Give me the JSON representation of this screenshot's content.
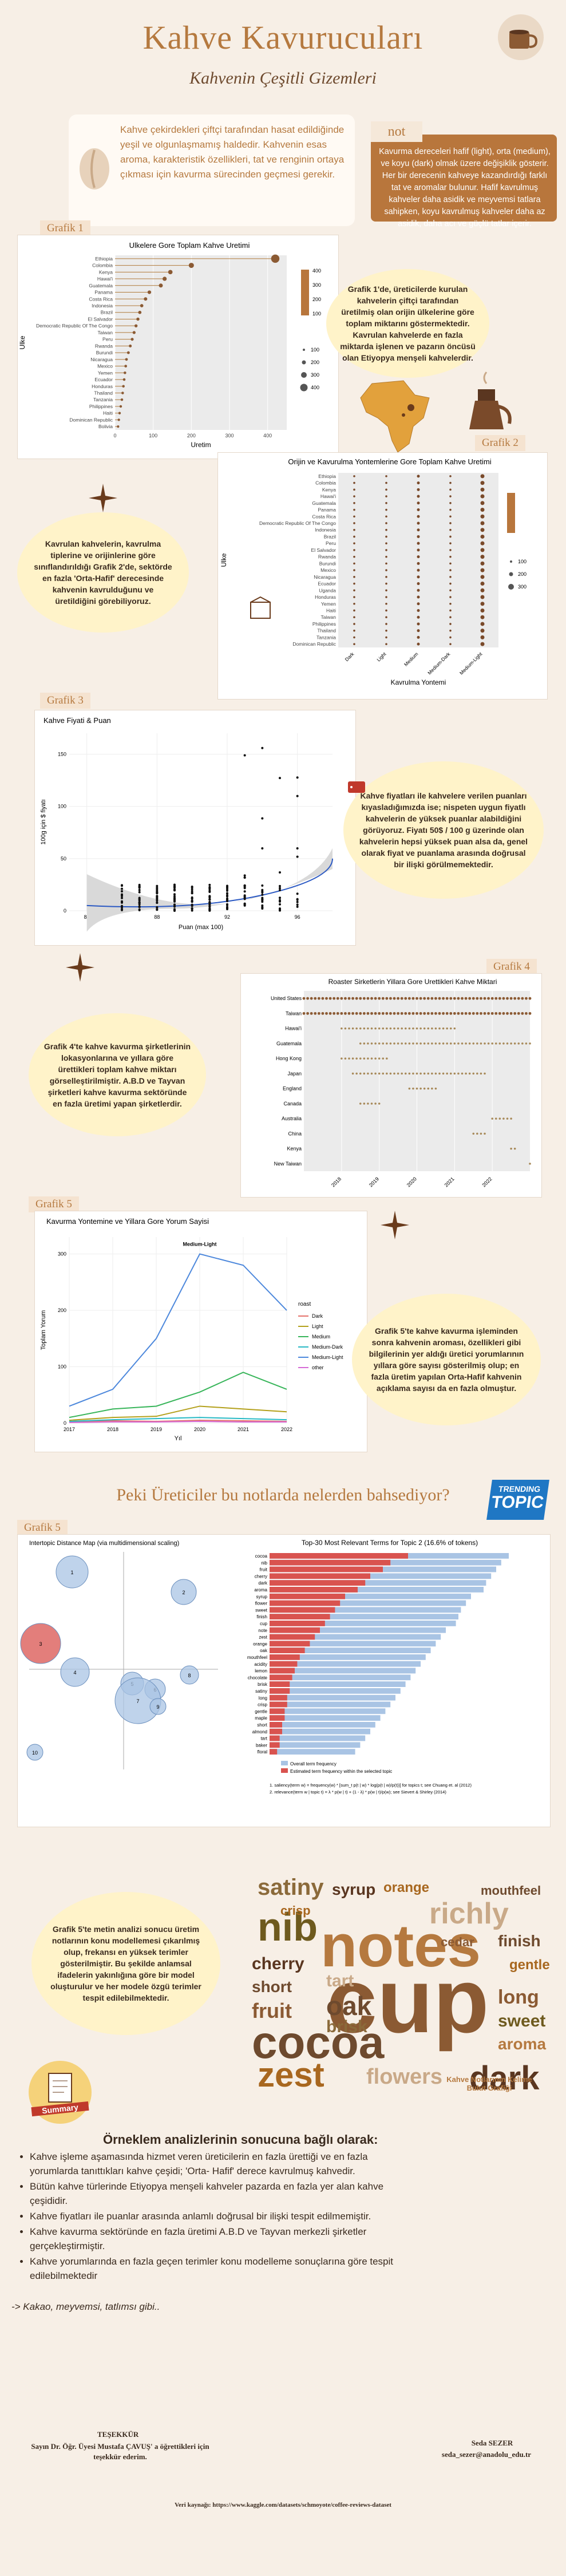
{
  "header": {
    "title": "Kahve Kavurucuları",
    "subtitle": "Kahvenin Çeşitli Gizemleri"
  },
  "intro": {
    "text": "Kahve çekirdekleri çiftçi tarafından hasat edildiğinde yeşil ve olgunlaşmamış haldedir. Kahvenin esas aroma, karakteristik özellikleri, tat ve renginin ortaya çıkması için kavurma sürecinden geçmesi gerekir."
  },
  "note": {
    "title": "not",
    "text": "Kavurma dereceleri hafif (light), orta (medium), ve koyu (dark) olmak üzere değişiklik gösterir. Her bir derecenin kahveye kazandırdığı farklı tat ve aromalar bulunur. Hafif kavrulmuş kahveler daha asidik ve meyvemsi tatlara sahipken, koyu kavrulmuş kahveler daha az asidik, daha acı ve güçlü tatlar içerir."
  },
  "tags": {
    "g1": "Grafik 1",
    "g2": "Grafik 2",
    "g3": "Grafik 3",
    "g4": "Grafik 4",
    "g5a": "Grafik 5",
    "g5b": "Grafik 5"
  },
  "bubbles": {
    "b1": "Grafik 1'de, üreticilerde kurulan kahvelerin çiftçi tarafından üretilmiş olan orijin ülkelerine göre toplam miktarını göstermektedir. Kavrulan kahvelerde en fazla miktarda işlenen ve pazarın öncüsü olan Etiyopya menşeli kahvelerdir.",
    "b2": "Kavrulan kahvelerin, kavrulma tiplerine ve orijinlerine göre sınıflandırıldığı Grafik 2'de, sektörde en fazla 'Orta-Hafif' derecesinde kahvenin kavrulduğunu ve üretildiğini görebiliyoruz.",
    "b3": "Kahve fiyatları ile kahvelere verilen puanları kıyasladığımızda ise; nispeten uygun fiyatlı kahvelerin de yüksek puanlar alabildiğini görüyoruz. Fiyatı 50$ / 100 g üzerinde olan kahvelerin hepsi yüksek puan alsa da, genel olarak fiyat ve puanlama arasında doğrusal bir ilişki görülmemektedir.",
    "b4": "Grafik 4'te kahve kavurma şirketlerinin lokasyonlarına ve yıllara göre ürettikleri toplam kahve miktarı görselleştirilmiştir. A.B.D ve Tayvan şirketleri kahve kavurma sektöründe en fazla üretimi yapan şirketlerdir.",
    "b5": "Grafik 5'te kahve kavurma işleminden sonra kahvenin aroması, özellikleri gibi bilgilerinin yer aldığı üretici yorumlarının yıllara göre sayısı gösterilmiş olup; en fazla üretim yapılan Orta-Hafif kahvenin açıklama sayısı da en fazla olmuştur.",
    "b6": "Grafik 5'te metin analizi sonucu üretim notlarının konu modellemesi çıkarılmış olup, frekansı en yüksek terimler gösterilmiştir. Bu şekilde anlamsal ifadelerin yakınlığına göre bir model oluşturulur ve her modele özgü terimler tespit edilebilmektedir."
  },
  "section_question": "Peki Üreticiler bu notlarda nelerden bahsediyor?",
  "trending": {
    "line1": "TRENDING",
    "line2": "TOPIC"
  },
  "wordcloud": {
    "caption": "Kahve Notlarının Kelime Bulut Grafiği"
  },
  "summary_label": "Summary",
  "results": {
    "title": "Örneklem analizlerinin sonucuna bağlı olarak:",
    "items": [
      "Kahve işleme aşamasında hizmet veren üreticilerin en fazla ürettiği ve en fazla yorumlarda tanıttıkları kahve çeşidi; 'Orta- Hafif' derece kavrulmuş kahvedir.",
      "Bütün kahve türlerinde Etiyopya menşeli kahveler pazarda en fazla yer alan kahve çeşididir.",
      "Kahve fiyatları ile puanlar arasında anlamlı doğrusal bir ilişki tespit edilmemiştir.",
      "Kahve kavurma sektöründe en fazla üretimi A.B.D ve Tayvan merkezli şirketler gerçekleştirmiştir.",
      "Kahve yorumlarında en fazla geçen terimler konu modelleme sonuçlarına göre tespit edilebilmektedir"
    ],
    "footer": "-> Kakao, meyvemsi, tatlımsı gibi.."
  },
  "thanks": {
    "title": "TEŞEKKÜR",
    "text": "Sayın Dr. Öğr. Üyesi Mustafa ÇAVUŞ' a öğrettikleri için teşekkür ederim."
  },
  "author": {
    "name": "Seda SEZER",
    "email": "seda_sezer@anadolu_edu.tr"
  },
  "source": "Veri kaynağı: https://www.kaggle.com/datasets/schmoyote/coffee-reviews-dataset",
  "chart_data": [
    {
      "type": "bar",
      "title": "Ulkelere Gore Toplam Kahve Uretimi",
      "xlabel": "Uretim",
      "ylabel": "Ulke",
      "xticks": [
        "0",
        "100",
        "200",
        "300",
        "400"
      ],
      "xlim": [
        0,
        450
      ],
      "categories": [
        "Ethiopia",
        "Colombia",
        "Kenya",
        "Hawai'i",
        "Guatemala",
        "Panama",
        "Costa Rica",
        "Indonesia",
        "Brazil",
        "El Salvador",
        "Democratic Republic Of The Congo",
        "Taiwan",
        "Peru",
        "Rwanda",
        "Burundi",
        "Nicaragua",
        "Mexico",
        "Yemen",
        "Ecuador",
        "Honduras",
        "Thailand",
        "Tanzania",
        "Philippines",
        "Haiti",
        "Dominican Republic",
        "Bolivia"
      ],
      "values": [
        420,
        200,
        145,
        130,
        120,
        90,
        80,
        70,
        65,
        60,
        55,
        50,
        45,
        40,
        35,
        30,
        28,
        26,
        24,
        22,
        20,
        18,
        15,
        12,
        10,
        8
      ],
      "legend": {
        "title": "",
        "entries": [
          "100",
          "200",
          "300",
          "400"
        ],
        "sizes": [
          "100",
          "200",
          "300",
          "400"
        ]
      }
    },
    {
      "type": "scatter",
      "title": "Orijin ve Kavurulma Yontemlerine Gore Toplam Kahve Uretimi",
      "xlabel": "Kavrulma Yontemi",
      "ylabel": "Ulke",
      "categories_x": [
        "Dark",
        "Light",
        "Medium",
        "Medium-Dark",
        "Medium-Light"
      ],
      "categories_y": [
        "Ethiopia",
        "Colombia",
        "Kenya",
        "Hawai'i",
        "Guatemala",
        "Panama",
        "Costa Rica",
        "Democratic Republic Of The Congo",
        "Indonesia",
        "Brazil",
        "Peru",
        "El Salvador",
        "Rwanda",
        "Burundi",
        "Mexico",
        "Nicaragua",
        "Ecuador",
        "Uganda",
        "Honduras",
        "Yemen",
        "Haiti",
        "Taiwan",
        "Philippines",
        "Thailand",
        "Tanzania",
        "Dominican Republic"
      ],
      "legend": {
        "entries": [
          "100",
          "200",
          "300"
        ]
      }
    },
    {
      "type": "scatter",
      "title": "Kahve Fiyati & Puan",
      "xlabel": "Puan (max 100)",
      "ylabel": "100g için $ fiyatı",
      "xticks": [
        "84",
        "88",
        "92",
        "96"
      ],
      "yticks": [
        "0",
        "50",
        "100",
        "150"
      ],
      "xlim": [
        83,
        98
      ],
      "ylim": [
        0,
        170
      ]
    },
    {
      "type": "scatter",
      "title": "Roaster Sirketlerin Yillara Gore Urettikleri Kahve Miktari",
      "xticks": [
        "2018",
        "2019",
        "2020",
        "2021",
        "2022"
      ],
      "categories": [
        "United States",
        "Taiwan",
        "Hawai'i",
        "Guatemala",
        "Hong Kong",
        "Japan",
        "England",
        "Canada",
        "Australia",
        "China",
        "Kenya",
        "New Taiwan"
      ]
    },
    {
      "type": "line",
      "title": "Kavurma Yontemine ve Yillara Gore Yorum Sayisi",
      "xlabel": "Yıl",
      "ylabel": "Toplam Yorum",
      "x": [
        2017,
        2018,
        2019,
        2020,
        2021,
        2022
      ],
      "yticks": [
        "0",
        "100",
        "200",
        "300"
      ],
      "ylim": [
        0,
        330
      ],
      "annotation": "Medium-Light",
      "legend_title": "roast",
      "series": [
        {
          "name": "Dark",
          "values": [
            2,
            4,
            3,
            5,
            4,
            3
          ],
          "color": "#e4716a"
        },
        {
          "name": "Light",
          "values": [
            5,
            10,
            12,
            30,
            25,
            20
          ],
          "color": "#b3a01b"
        },
        {
          "name": "Medium",
          "values": [
            10,
            25,
            30,
            55,
            90,
            60
          ],
          "color": "#38b55a"
        },
        {
          "name": "Medium-Dark",
          "values": [
            3,
            6,
            8,
            10,
            8,
            6
          ],
          "color": "#28b9c4"
        },
        {
          "name": "Medium-Light",
          "values": [
            30,
            60,
            150,
            300,
            280,
            200
          ],
          "color": "#4d88dc"
        },
        {
          "name": "other",
          "values": [
            1,
            2,
            2,
            3,
            2,
            2
          ],
          "color": "#d66ad6"
        }
      ]
    },
    {
      "type": "scatter",
      "title": "Intertopic Distance Map (via multidimensional scaling)",
      "labels": [
        "1",
        "2",
        "3",
        "4",
        "5",
        "6",
        "7",
        "8",
        "9",
        "10"
      ]
    },
    {
      "type": "bar",
      "title": "Top-30 Most Relevant Terms for Topic 2 (16.6% of tokens)",
      "categories": [
        "cocoa",
        "nib",
        "fruit",
        "cherry",
        "dark",
        "aroma",
        "syrup",
        "flower",
        "sweet",
        "finish",
        "cup",
        "note",
        "zest",
        "orange",
        "oak",
        "mouthfeel",
        "acidity",
        "lemon",
        "chocolate",
        "brisk",
        "satiny",
        "long",
        "crisp",
        "gentle",
        "maple",
        "short",
        "almond",
        "tart",
        "baker",
        "floral"
      ],
      "series": [
        {
          "name": "Overall term frequency",
          "values": [
            95,
            92,
            90,
            88,
            86,
            85,
            80,
            78,
            76,
            75,
            74,
            70,
            68,
            66,
            64,
            62,
            60,
            58,
            56,
            54,
            52,
            50,
            48,
            46,
            44,
            42,
            40,
            38,
            36,
            34
          ]
        },
        {
          "name": "Estimated term frequency within the selected topic",
          "values": [
            55,
            48,
            45,
            40,
            38,
            35,
            30,
            28,
            26,
            24,
            22,
            20,
            18,
            16,
            14,
            12,
            11,
            10,
            9,
            8,
            8,
            7,
            7,
            6,
            6,
            5,
            5,
            4,
            4,
            3
          ]
        }
      ],
      "footnote": [
        "1. saliency(term w) = frequency(w) * [sum_t p(t | w) * log(p(t | w)/p(t))] for topics t; see Chuang et. al (2012)",
        "2. relevance(term w | topic t) = λ * p(w | t) + (1 - λ) * p(w | t)/p(w); see Sievert & Shirley (2014)"
      ],
      "legend": [
        "Overall term frequency",
        "Estimated term frequency within the selected topic"
      ]
    }
  ]
}
